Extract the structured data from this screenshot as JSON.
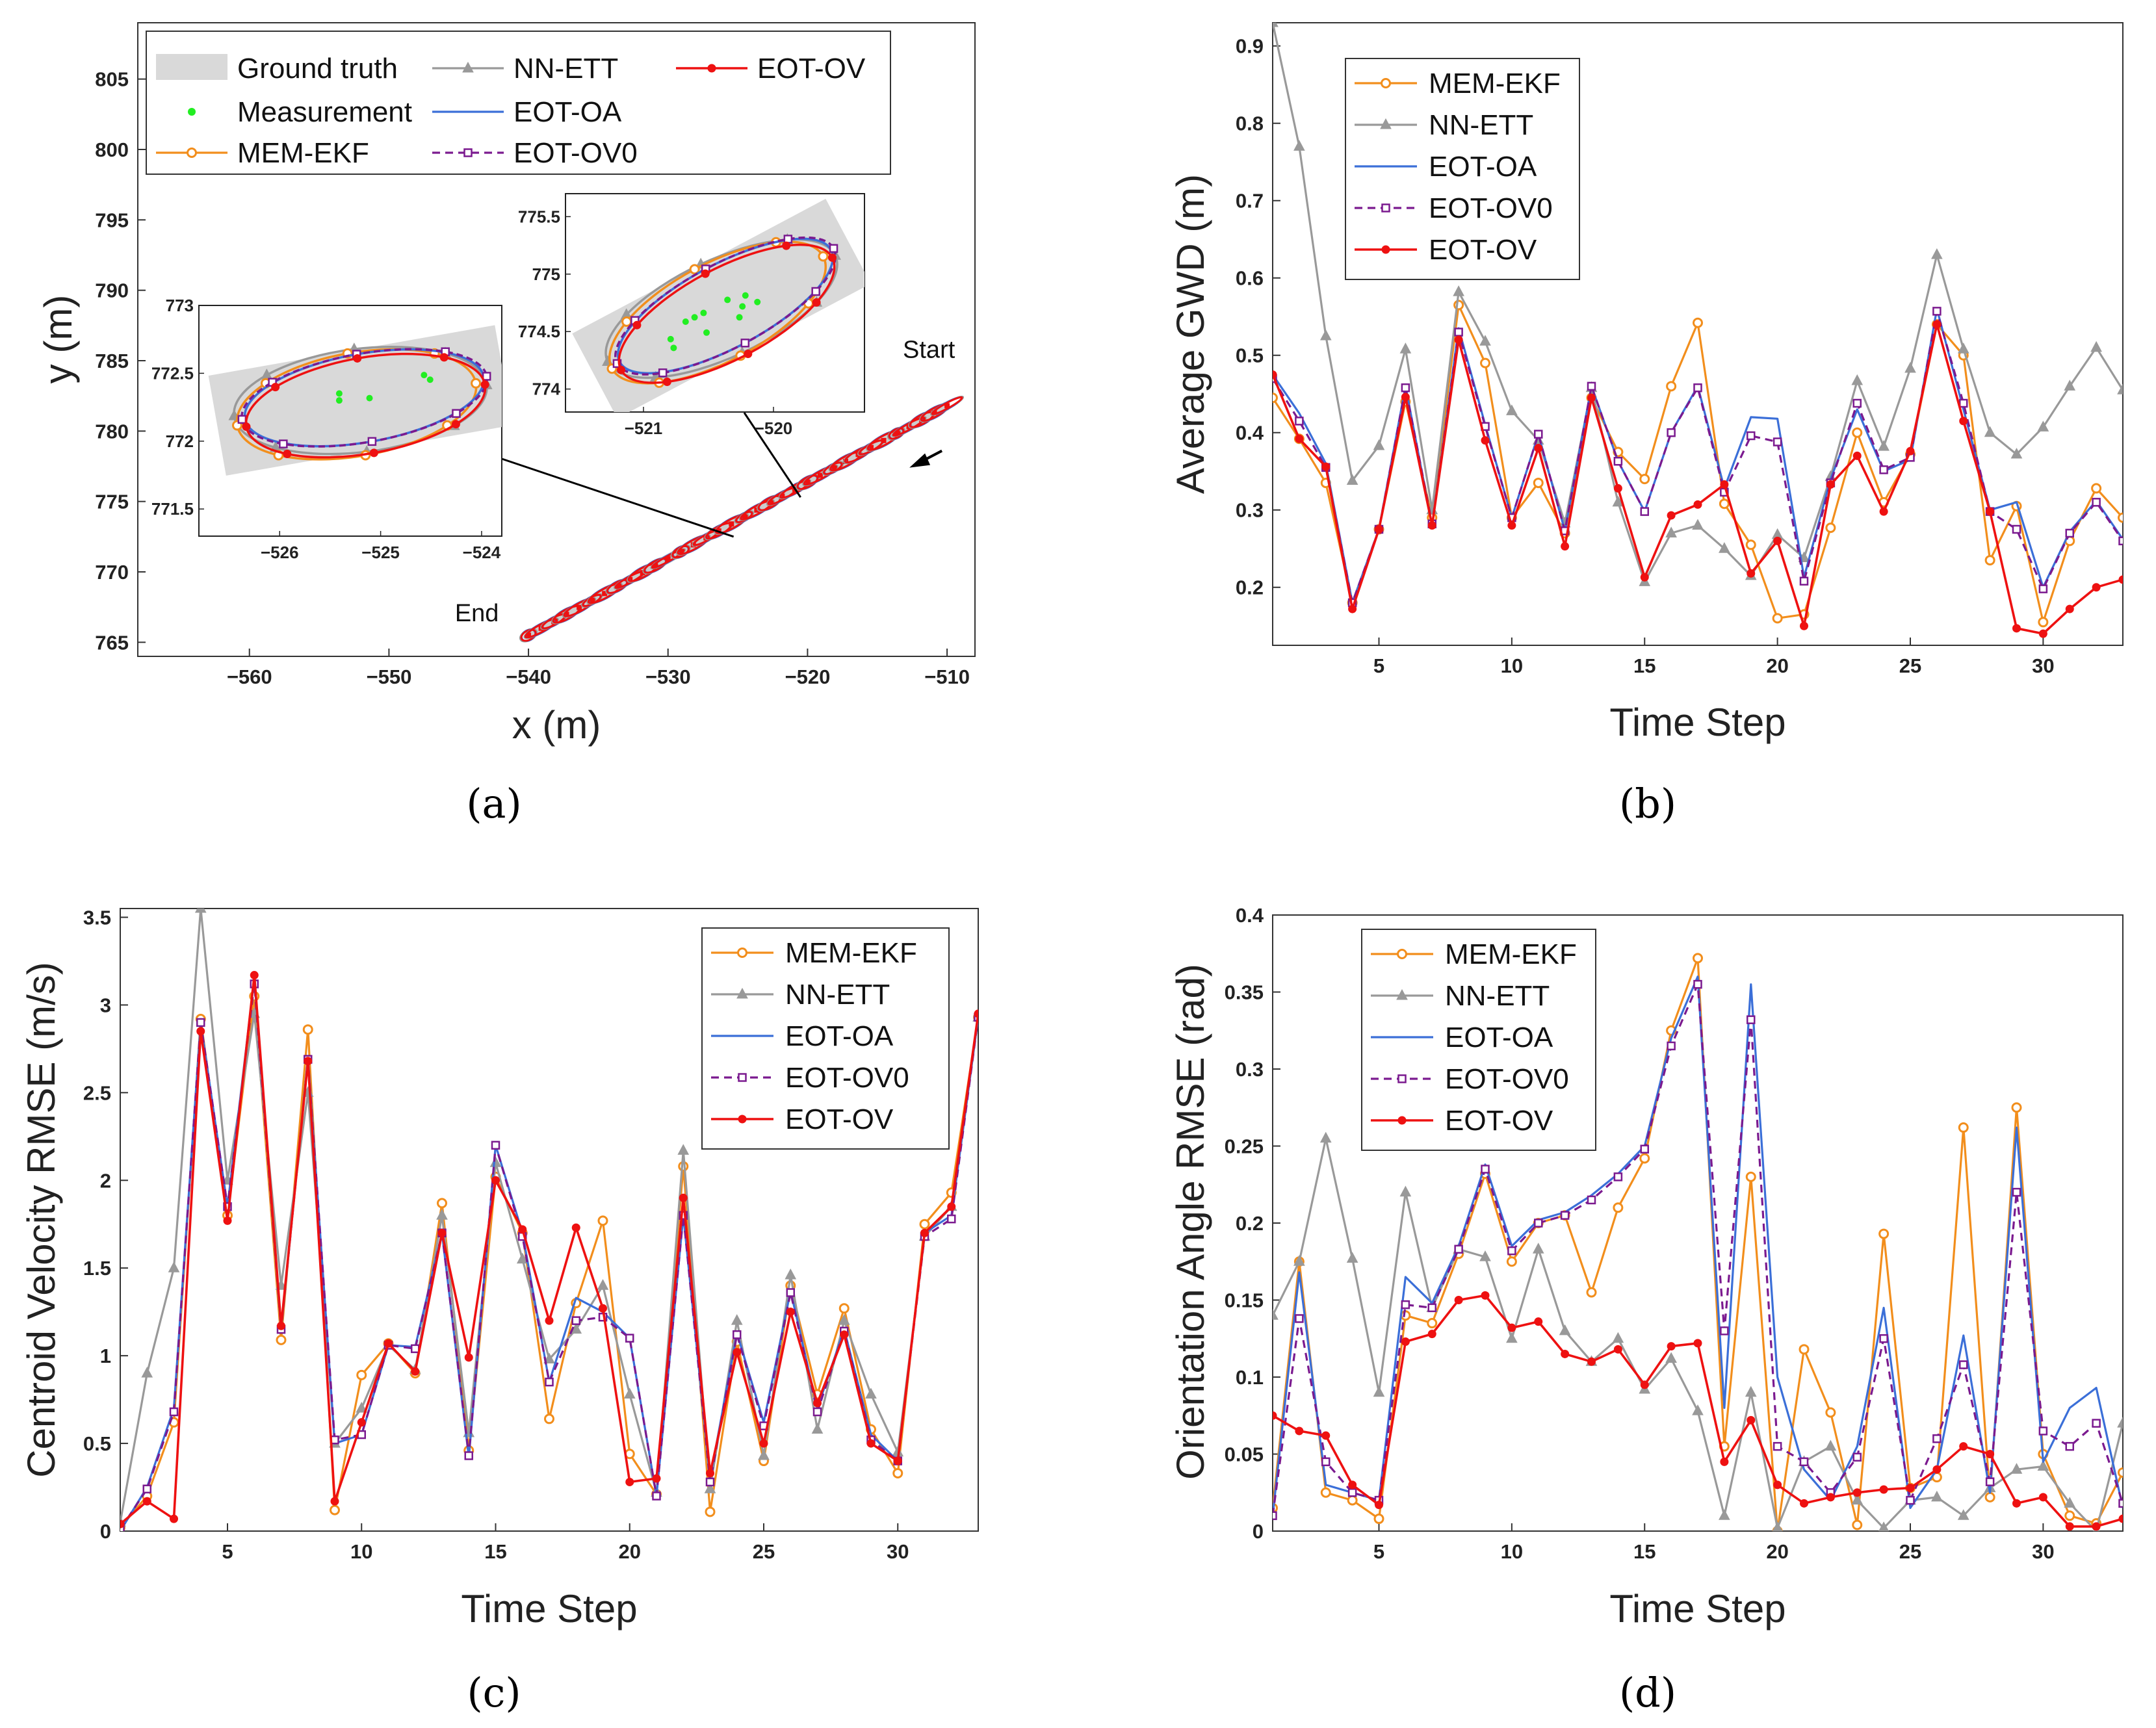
{
  "colors": {
    "MEM-EKF": "#f28e1c",
    "NN-ETT": "#999999",
    "EOT-OA": "#3b6fd8",
    "EOT-OV0": "#7b1a8f",
    "EOT-OV": "#ee1111",
    "Ground truth": "#d9d9d9",
    "Measurement": "#22ee22"
  },
  "chart_data": [
    {
      "id": "a",
      "type": "scatter",
      "caption": "(a)",
      "xlabel": "x (m)",
      "ylabel": "y (m)",
      "xlim": [
        -568,
        -508
      ],
      "ylim": [
        764,
        809
      ],
      "xticks": [
        -560,
        -550,
        -540,
        -530,
        -520,
        -510
      ],
      "yticks": [
        765,
        770,
        775,
        780,
        785,
        790,
        795,
        800,
        805
      ],
      "legend": [
        "Ground truth",
        "Measurement",
        "MEM-EKF",
        "NN-ETT",
        "EOT-OA",
        "EOT-OV0",
        "EOT-OV"
      ],
      "annotations": {
        "start": "Start",
        "end": "End"
      },
      "trajectory": {
        "start": [
          -510,
          781.8
        ],
        "end": [
          -540,
          765.5
        ]
      },
      "inset1": {
        "xlim": [
          -526.8,
          -523.8
        ],
        "ylim": [
          771.3,
          773.0
        ],
        "xticks": [
          -526,
          -525,
          -524
        ],
        "yticks": [
          771.5,
          772,
          772.5,
          773
        ],
        "center": [
          -525.2,
          772.3
        ]
      },
      "inset2": {
        "xlim": [
          -521.6,
          -519.3
        ],
        "ylim": [
          773.8,
          775.7
        ],
        "xticks": [
          -521,
          -520
        ],
        "yticks": [
          774,
          774.5,
          775,
          775.5
        ],
        "center": [
          -520.4,
          774.7
        ]
      }
    },
    {
      "id": "b",
      "type": "line",
      "caption": "(b)",
      "xlabel": "Time Step",
      "ylabel": "Average GWD (m)",
      "xlim": [
        1,
        33
      ],
      "ylim": [
        0.125,
        0.93
      ],
      "xticks": [
        5,
        10,
        15,
        20,
        25,
        30
      ],
      "yticks": [
        0.2,
        0.3,
        0.4,
        0.5,
        0.6,
        0.7,
        0.8,
        0.9
      ],
      "legend_position": "top-left",
      "x": [
        1,
        2,
        3,
        4,
        5,
        6,
        7,
        8,
        9,
        10,
        11,
        12,
        13,
        14,
        15,
        16,
        17,
        18,
        19,
        20,
        21,
        22,
        23,
        24,
        25,
        26,
        27,
        28,
        29,
        30,
        31,
        32,
        33
      ],
      "series": [
        {
          "name": "MEM-EKF",
          "values": [
            0.445,
            0.392,
            0.335,
            0.18,
            0.275,
            0.44,
            0.29,
            0.565,
            0.49,
            0.29,
            0.335,
            0.27,
            0.445,
            0.375,
            0.34,
            0.46,
            0.542,
            0.308,
            0.255,
            0.16,
            0.165,
            0.277,
            0.4,
            0.31,
            0.372,
            0.54,
            0.5,
            0.235,
            0.305,
            0.155,
            0.26,
            0.328,
            0.29
          ]
        },
        {
          "name": "NN-ETT",
          "values": [
            0.93,
            0.77,
            0.525,
            0.338,
            0.383,
            0.508,
            0.3,
            0.582,
            0.518,
            0.428,
            0.39,
            0.283,
            0.458,
            0.31,
            0.207,
            0.27,
            0.28,
            0.25,
            0.215,
            0.268,
            0.238,
            0.343,
            0.467,
            0.382,
            0.483,
            0.63,
            0.508,
            0.4,
            0.372,
            0.407,
            0.46,
            0.51,
            0.455
          ]
        },
        {
          "name": "EOT-OA",
          "values": [
            0.475,
            0.425,
            0.36,
            0.18,
            0.275,
            0.46,
            0.28,
            0.535,
            0.41,
            0.29,
            0.398,
            0.273,
            0.46,
            0.363,
            0.298,
            0.4,
            0.46,
            0.328,
            0.42,
            0.418,
            0.213,
            0.34,
            0.43,
            0.35,
            0.365,
            0.56,
            0.43,
            0.3,
            0.31,
            0.2,
            0.272,
            0.312,
            0.262
          ]
        },
        {
          "name": "EOT-OV0",
          "values": [
            0.47,
            0.415,
            0.355,
            0.18,
            0.275,
            0.458,
            0.282,
            0.53,
            0.408,
            0.29,
            0.398,
            0.273,
            0.46,
            0.363,
            0.298,
            0.4,
            0.458,
            0.323,
            0.396,
            0.388,
            0.208,
            0.335,
            0.438,
            0.352,
            0.368,
            0.557,
            0.438,
            0.298,
            0.275,
            0.198,
            0.27,
            0.31,
            0.26
          ]
        },
        {
          "name": "EOT-OV",
          "values": [
            0.475,
            0.392,
            0.356,
            0.172,
            0.275,
            0.446,
            0.28,
            0.52,
            0.39,
            0.28,
            0.38,
            0.253,
            0.445,
            0.328,
            0.213,
            0.293,
            0.307,
            0.333,
            0.218,
            0.26,
            0.15,
            0.333,
            0.37,
            0.298,
            0.376,
            0.54,
            0.415,
            0.298,
            0.147,
            0.14,
            0.172,
            0.2,
            0.21
          ]
        }
      ]
    },
    {
      "id": "c",
      "type": "line",
      "caption": "(c)",
      "xlabel": "Time Step",
      "ylabel": "Centroid Velocity RMSE (m/s)",
      "xlim": [
        1,
        33
      ],
      "ylim": [
        0,
        3.55
      ],
      "xticks": [
        5,
        10,
        15,
        20,
        25,
        30
      ],
      "yticks": [
        0,
        0.5,
        1,
        1.5,
        2,
        2.5,
        3,
        3.5
      ],
      "legend_position": "top-right",
      "x": [
        1,
        2,
        3,
        4,
        5,
        6,
        7,
        8,
        9,
        10,
        11,
        12,
        13,
        14,
        15,
        16,
        17,
        18,
        19,
        20,
        21,
        22,
        23,
        24,
        25,
        26,
        27,
        28,
        29,
        30,
        31,
        32,
        33
      ],
      "series": [
        {
          "name": "MEM-EKF",
          "values": [
            0.02,
            0.2,
            0.62,
            2.92,
            1.8,
            3.05,
            1.09,
            2.86,
            0.12,
            0.89,
            1.07,
            0.9,
            1.87,
            0.46,
            2.02,
            1.7,
            0.64,
            1.3,
            1.77,
            0.44,
            0.21,
            2.08,
            0.11,
            1.08,
            0.4,
            1.4,
            0.78,
            1.27,
            0.58,
            0.33,
            1.75,
            1.93,
            2.93
          ]
        },
        {
          "name": "NN-ETT",
          "values": [
            0.05,
            0.9,
            1.5,
            3.55,
            2.0,
            2.95,
            1.4,
            2.5,
            0.5,
            0.7,
            1.06,
            0.92,
            1.8,
            0.56,
            2.1,
            1.55,
            0.98,
            1.15,
            1.4,
            0.78,
            0.22,
            2.17,
            0.24,
            1.2,
            0.43,
            1.46,
            0.58,
            1.2,
            0.78,
            0.45,
            1.68,
            1.85,
            2.93
          ]
        },
        {
          "name": "EOT-OA",
          "values": [
            0.0,
            0.25,
            0.7,
            2.9,
            1.85,
            3.15,
            1.15,
            2.7,
            0.5,
            0.55,
            1.06,
            1.05,
            1.7,
            0.42,
            2.2,
            1.7,
            0.85,
            1.33,
            1.25,
            1.1,
            0.2,
            1.8,
            0.3,
            1.13,
            0.62,
            1.37,
            0.7,
            1.15,
            0.55,
            0.4,
            1.7,
            1.8,
            2.93
          ]
        },
        {
          "name": "EOT-OV0",
          "values": [
            0.01,
            0.24,
            0.68,
            2.9,
            1.85,
            3.12,
            1.15,
            2.69,
            0.52,
            0.55,
            1.06,
            1.04,
            1.7,
            0.43,
            2.2,
            1.68,
            0.85,
            1.2,
            1.22,
            1.1,
            0.2,
            1.8,
            0.28,
            1.12,
            0.6,
            1.36,
            0.68,
            1.14,
            0.52,
            0.4,
            1.68,
            1.78,
            2.93
          ]
        },
        {
          "name": "EOT-OV",
          "values": [
            0.04,
            0.17,
            0.07,
            2.85,
            1.77,
            3.17,
            1.17,
            2.68,
            0.17,
            0.62,
            1.07,
            0.91,
            1.7,
            0.99,
            2.0,
            1.72,
            1.2,
            1.73,
            1.27,
            0.28,
            0.3,
            1.9,
            0.33,
            1.02,
            0.5,
            1.25,
            0.73,
            1.12,
            0.5,
            0.4,
            1.7,
            1.85,
            2.95
          ]
        }
      ]
    },
    {
      "id": "d",
      "type": "line",
      "caption": "(d)",
      "xlabel": "Time Step",
      "ylabel": "Orientation Angle RMSE (rad)",
      "xlim": [
        1,
        33
      ],
      "ylim": [
        0,
        0.4
      ],
      "xticks": [
        5,
        10,
        15,
        20,
        25,
        30
      ],
      "yticks": [
        0,
        0.05,
        0.1,
        0.15,
        0.2,
        0.25,
        0.3,
        0.35,
        0.4
      ],
      "legend_position": "top-left",
      "x": [
        1,
        2,
        3,
        4,
        5,
        6,
        7,
        8,
        9,
        10,
        11,
        12,
        13,
        14,
        15,
        16,
        17,
        18,
        19,
        20,
        21,
        22,
        23,
        24,
        25,
        26,
        27,
        28,
        29,
        30,
        31,
        32,
        33
      ],
      "series": [
        {
          "name": "MEM-EKF",
          "values": [
            0.015,
            0.175,
            0.025,
            0.02,
            0.008,
            0.14,
            0.135,
            0.18,
            0.232,
            0.175,
            0.2,
            0.205,
            0.155,
            0.21,
            0.242,
            0.325,
            0.372,
            0.055,
            0.23,
            0.0,
            0.118,
            0.077,
            0.004,
            0.193,
            0.028,
            0.035,
            0.262,
            0.022,
            0.275,
            0.05,
            0.01,
            0.005,
            0.038
          ]
        },
        {
          "name": "NN-ETT",
          "values": [
            0.14,
            0.175,
            0.255,
            0.177,
            0.09,
            0.22,
            0.145,
            0.183,
            0.178,
            0.125,
            0.183,
            0.13,
            0.11,
            0.125,
            0.092,
            0.112,
            0.078,
            0.01,
            0.09,
            0.002,
            0.045,
            0.055,
            0.02,
            0.002,
            0.02,
            0.022,
            0.01,
            0.028,
            0.04,
            0.042,
            0.018,
            0.0,
            0.07
          ]
        },
        {
          "name": "EOT-OA",
          "values": [
            0.01,
            0.168,
            0.03,
            0.025,
            0.02,
            0.165,
            0.148,
            0.185,
            0.238,
            0.185,
            0.202,
            0.207,
            0.218,
            0.232,
            0.25,
            0.32,
            0.36,
            0.08,
            0.355,
            0.1,
            0.04,
            0.02,
            0.055,
            0.145,
            0.015,
            0.04,
            0.127,
            0.025,
            0.262,
            0.045,
            0.08,
            0.093,
            0.015
          ]
        },
        {
          "name": "EOT-OV0",
          "values": [
            0.01,
            0.138,
            0.045,
            0.025,
            0.02,
            0.147,
            0.145,
            0.183,
            0.235,
            0.182,
            0.2,
            0.205,
            0.215,
            0.23,
            0.248,
            0.315,
            0.355,
            0.13,
            0.332,
            0.055,
            0.045,
            0.025,
            0.048,
            0.125,
            0.02,
            0.06,
            0.108,
            0.032,
            0.22,
            0.065,
            0.055,
            0.07,
            0.018
          ]
        },
        {
          "name": "EOT-OV",
          "values": [
            0.075,
            0.065,
            0.062,
            0.03,
            0.017,
            0.123,
            0.128,
            0.15,
            0.153,
            0.132,
            0.136,
            0.115,
            0.11,
            0.118,
            0.095,
            0.12,
            0.122,
            0.045,
            0.072,
            0.03,
            0.018,
            0.022,
            0.025,
            0.027,
            0.028,
            0.04,
            0.055,
            0.05,
            0.018,
            0.022,
            0.003,
            0.003,
            0.008
          ]
        }
      ]
    }
  ]
}
